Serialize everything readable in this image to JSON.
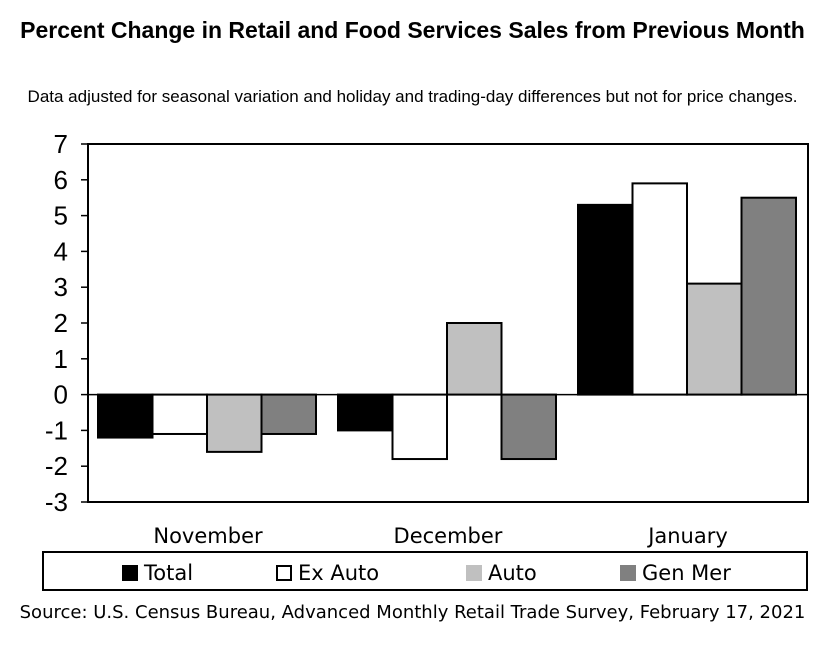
{
  "chart_data": {
    "type": "bar",
    "title": "Percent Change in Retail and Food Services Sales from Previous Month",
    "subtitle": "Data adjusted for seasonal variation and holiday and trading-day differences but not for price changes.",
    "categories": [
      "November",
      "December",
      "January"
    ],
    "series": [
      {
        "name": "Total",
        "values": [
          -1.2,
          -1.0,
          5.3
        ],
        "color": "#000000"
      },
      {
        "name": "Ex Auto",
        "values": [
          -1.1,
          -1.8,
          5.9
        ],
        "color": "#ffffff"
      },
      {
        "name": "Auto",
        "values": [
          -1.6,
          2.0,
          3.1
        ],
        "color": "#c0c0c0"
      },
      {
        "name": "Gen Mer",
        "values": [
          -1.1,
          -1.8,
          5.5
        ],
        "color": "#808080"
      }
    ],
    "ylim": [
      -3,
      7
    ],
    "yticks": [
      "7",
      "6",
      "5",
      "4",
      "3",
      "2",
      "1",
      "0",
      "-1",
      "-2",
      "-3"
    ],
    "grid": false,
    "legend_placement": "bottom",
    "source": "Source: U.S. Census Bureau, Advanced Monthly Retail Trade Survey, February 17, 2021"
  }
}
